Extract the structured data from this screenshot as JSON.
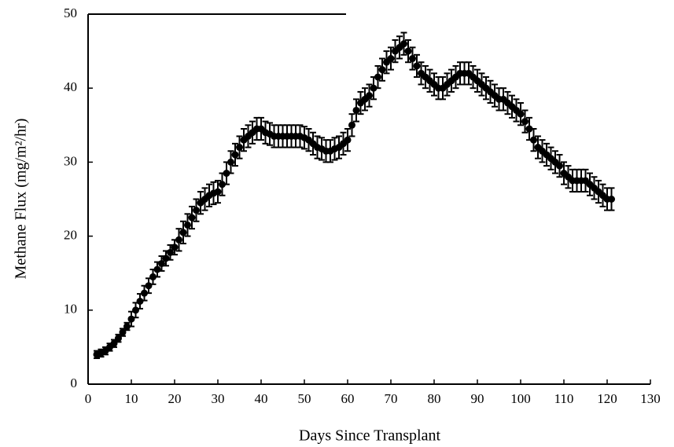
{
  "chart_data": {
    "type": "scatter",
    "xlabel": "Days Since Transplant",
    "ylabel": "Methane Flux (mg/m²/hr)",
    "xlim": [
      0,
      130
    ],
    "xticks": [
      0,
      10,
      20,
      30,
      40,
      50,
      60,
      70,
      80,
      90,
      100,
      110,
      120,
      130
    ],
    "ylim": [
      0,
      50
    ],
    "yticks": [
      0,
      10,
      20,
      30,
      40,
      50
    ],
    "color": "#000000",
    "x": [
      2,
      3,
      4,
      5,
      6,
      7,
      8,
      9,
      10,
      11,
      12,
      13,
      14,
      15,
      16,
      17,
      18,
      19,
      20,
      21,
      22,
      23,
      24,
      25,
      26,
      27,
      28,
      29,
      30,
      31,
      32,
      33,
      34,
      35,
      36,
      37,
      38,
      39,
      40,
      41,
      42,
      43,
      44,
      45,
      46,
      47,
      48,
      49,
      50,
      51,
      52,
      53,
      54,
      55,
      56,
      57,
      58,
      59,
      60,
      61,
      62,
      63,
      64,
      65,
      66,
      67,
      68,
      69,
      70,
      71,
      72,
      73,
      74,
      75,
      76,
      77,
      78,
      79,
      80,
      81,
      82,
      83,
      84,
      85,
      86,
      87,
      88,
      89,
      90,
      91,
      92,
      93,
      94,
      95,
      96,
      97,
      98,
      99,
      100,
      101,
      102,
      103,
      104,
      105,
      106,
      107,
      108,
      109,
      110,
      111,
      112,
      113,
      114,
      115,
      116,
      117,
      118,
      119,
      120,
      121
    ],
    "values": [
      4,
      4.2,
      4.5,
      5,
      5.5,
      6.2,
      7,
      7.8,
      8.8,
      10,
      11.2,
      12.3,
      13.3,
      14.5,
      15.5,
      16.3,
      17,
      17.8,
      18.5,
      19.5,
      20.5,
      21.5,
      22.5,
      23.5,
      24.5,
      25,
      25.5,
      25.8,
      26,
      27,
      28.5,
      30,
      31,
      32,
      33,
      33.5,
      34,
      34.5,
      34.5,
      34,
      33.8,
      33.5,
      33.5,
      33.5,
      33.5,
      33.5,
      33.5,
      33.5,
      33.3,
      33,
      32.5,
      32,
      31.8,
      31.5,
      31.5,
      31.8,
      32,
      32.5,
      33,
      35,
      37,
      38,
      38.5,
      39,
      40,
      41.5,
      42.5,
      43.5,
      44,
      45,
      45.5,
      46,
      45,
      44,
      43,
      42,
      41.5,
      41,
      40.5,
      40,
      40,
      40.5,
      41,
      41.5,
      42,
      42,
      42,
      41.5,
      41,
      40.5,
      40,
      39.5,
      39,
      38.5,
      38.5,
      38,
      37.5,
      37,
      36.5,
      35.5,
      34.5,
      33,
      32,
      31.5,
      31,
      30.5,
      30,
      29.5,
      28.5,
      28,
      27.5,
      27.5,
      27.5,
      27.5,
      27,
      26.5,
      26,
      25.5,
      25,
      25
    ],
    "errors": [
      0.5,
      0.5,
      0.5,
      0.5,
      0.5,
      0.5,
      0.5,
      0.5,
      1,
      1,
      1,
      1,
      1,
      1,
      1,
      1,
      1,
      1,
      1,
      1.5,
      1.5,
      1.5,
      1.5,
      1.5,
      1.5,
      1.5,
      1.5,
      1.5,
      1.5,
      1.5,
      1.5,
      1.5,
      1.5,
      1.5,
      1.5,
      1.5,
      1.5,
      1.5,
      1.5,
      1.5,
      1.5,
      1.5,
      1.5,
      1.5,
      1.5,
      1.5,
      1.5,
      1.5,
      1.5,
      1.5,
      1.5,
      1.5,
      1.5,
      1.5,
      1.5,
      1.5,
      1.5,
      1.5,
      1.5,
      1.5,
      1.5,
      1.5,
      1.5,
      1.5,
      1.5,
      1.5,
      1.5,
      1.5,
      1.5,
      1.5,
      1.5,
      1.5,
      1.5,
      1.5,
      1.5,
      1.5,
      1.5,
      1.5,
      1.5,
      1.5,
      1.5,
      1.5,
      1.5,
      1.5,
      1.5,
      1.5,
      1.5,
      1.5,
      1.5,
      1.5,
      1.5,
      1.5,
      1.5,
      1.5,
      1.5,
      1.5,
      1.5,
      1.5,
      1.5,
      1.5,
      1.5,
      1.5,
      1.5,
      1.5,
      1.5,
      1.5,
      1.5,
      1.5,
      1.5,
      1.5,
      1.5,
      1.5,
      1.5,
      1.5,
      1.5,
      1.5,
      1.5,
      1.5,
      1.5,
      1.5
    ]
  }
}
